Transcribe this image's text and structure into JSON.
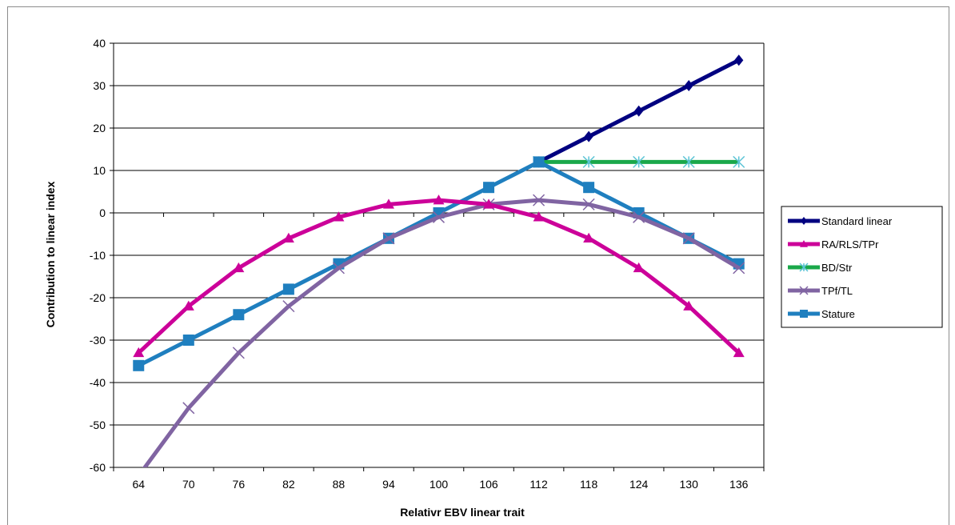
{
  "chart_data": {
    "type": "line",
    "title": "",
    "xlabel": "Relativr EBV linear trait",
    "ylabel": "Contribution to linear index",
    "x": [
      64,
      70,
      76,
      82,
      88,
      94,
      100,
      106,
      112,
      118,
      124,
      130,
      136
    ],
    "ylim": [
      -60,
      40
    ],
    "yticks": [
      40,
      30,
      20,
      10,
      0,
      -10,
      -20,
      -30,
      -40,
      -50,
      -60
    ],
    "grid": true,
    "legend_position": "right",
    "series": [
      {
        "name": "Standard linear",
        "color": "#000080",
        "marker": "diamond",
        "x": [
          112,
          118,
          124,
          130,
          136
        ],
        "values": [
          12,
          18,
          24,
          30,
          36
        ]
      },
      {
        "name": "RA/RLS/TPr",
        "color": "#cc0099",
        "marker": "triangle",
        "x": [
          64,
          70,
          76,
          82,
          88,
          94,
          100,
          106,
          112,
          118,
          124,
          130,
          136
        ],
        "values": [
          -33,
          -22,
          -13,
          -6,
          -1,
          2,
          3,
          2,
          -1,
          -6,
          -13,
          -22,
          -33
        ]
      },
      {
        "name": "BD/Str",
        "color": "#1aa84a",
        "marker": "asterisk",
        "x": [
          112,
          118,
          124,
          130,
          136
        ],
        "values": [
          12,
          12,
          12,
          12,
          12
        ]
      },
      {
        "name": "TPf/TL",
        "color": "#8064a2",
        "marker": "x",
        "x": [
          64,
          70,
          76,
          82,
          88,
          94,
          100,
          106,
          112,
          118,
          124,
          130,
          136
        ],
        "values": [
          -62,
          -46,
          -33,
          -22,
          -13,
          -6,
          -1,
          2,
          3,
          2,
          -1,
          -6,
          -13
        ]
      },
      {
        "name": "Stature",
        "color": "#1f7fbf",
        "marker": "square",
        "x": [
          64,
          70,
          76,
          82,
          88,
          94,
          100,
          106,
          112,
          118,
          124,
          130,
          136
        ],
        "values": [
          -36,
          -30,
          -24,
          -18,
          -12,
          -6,
          0,
          6,
          12,
          6,
          0,
          -6,
          -12
        ]
      }
    ]
  }
}
